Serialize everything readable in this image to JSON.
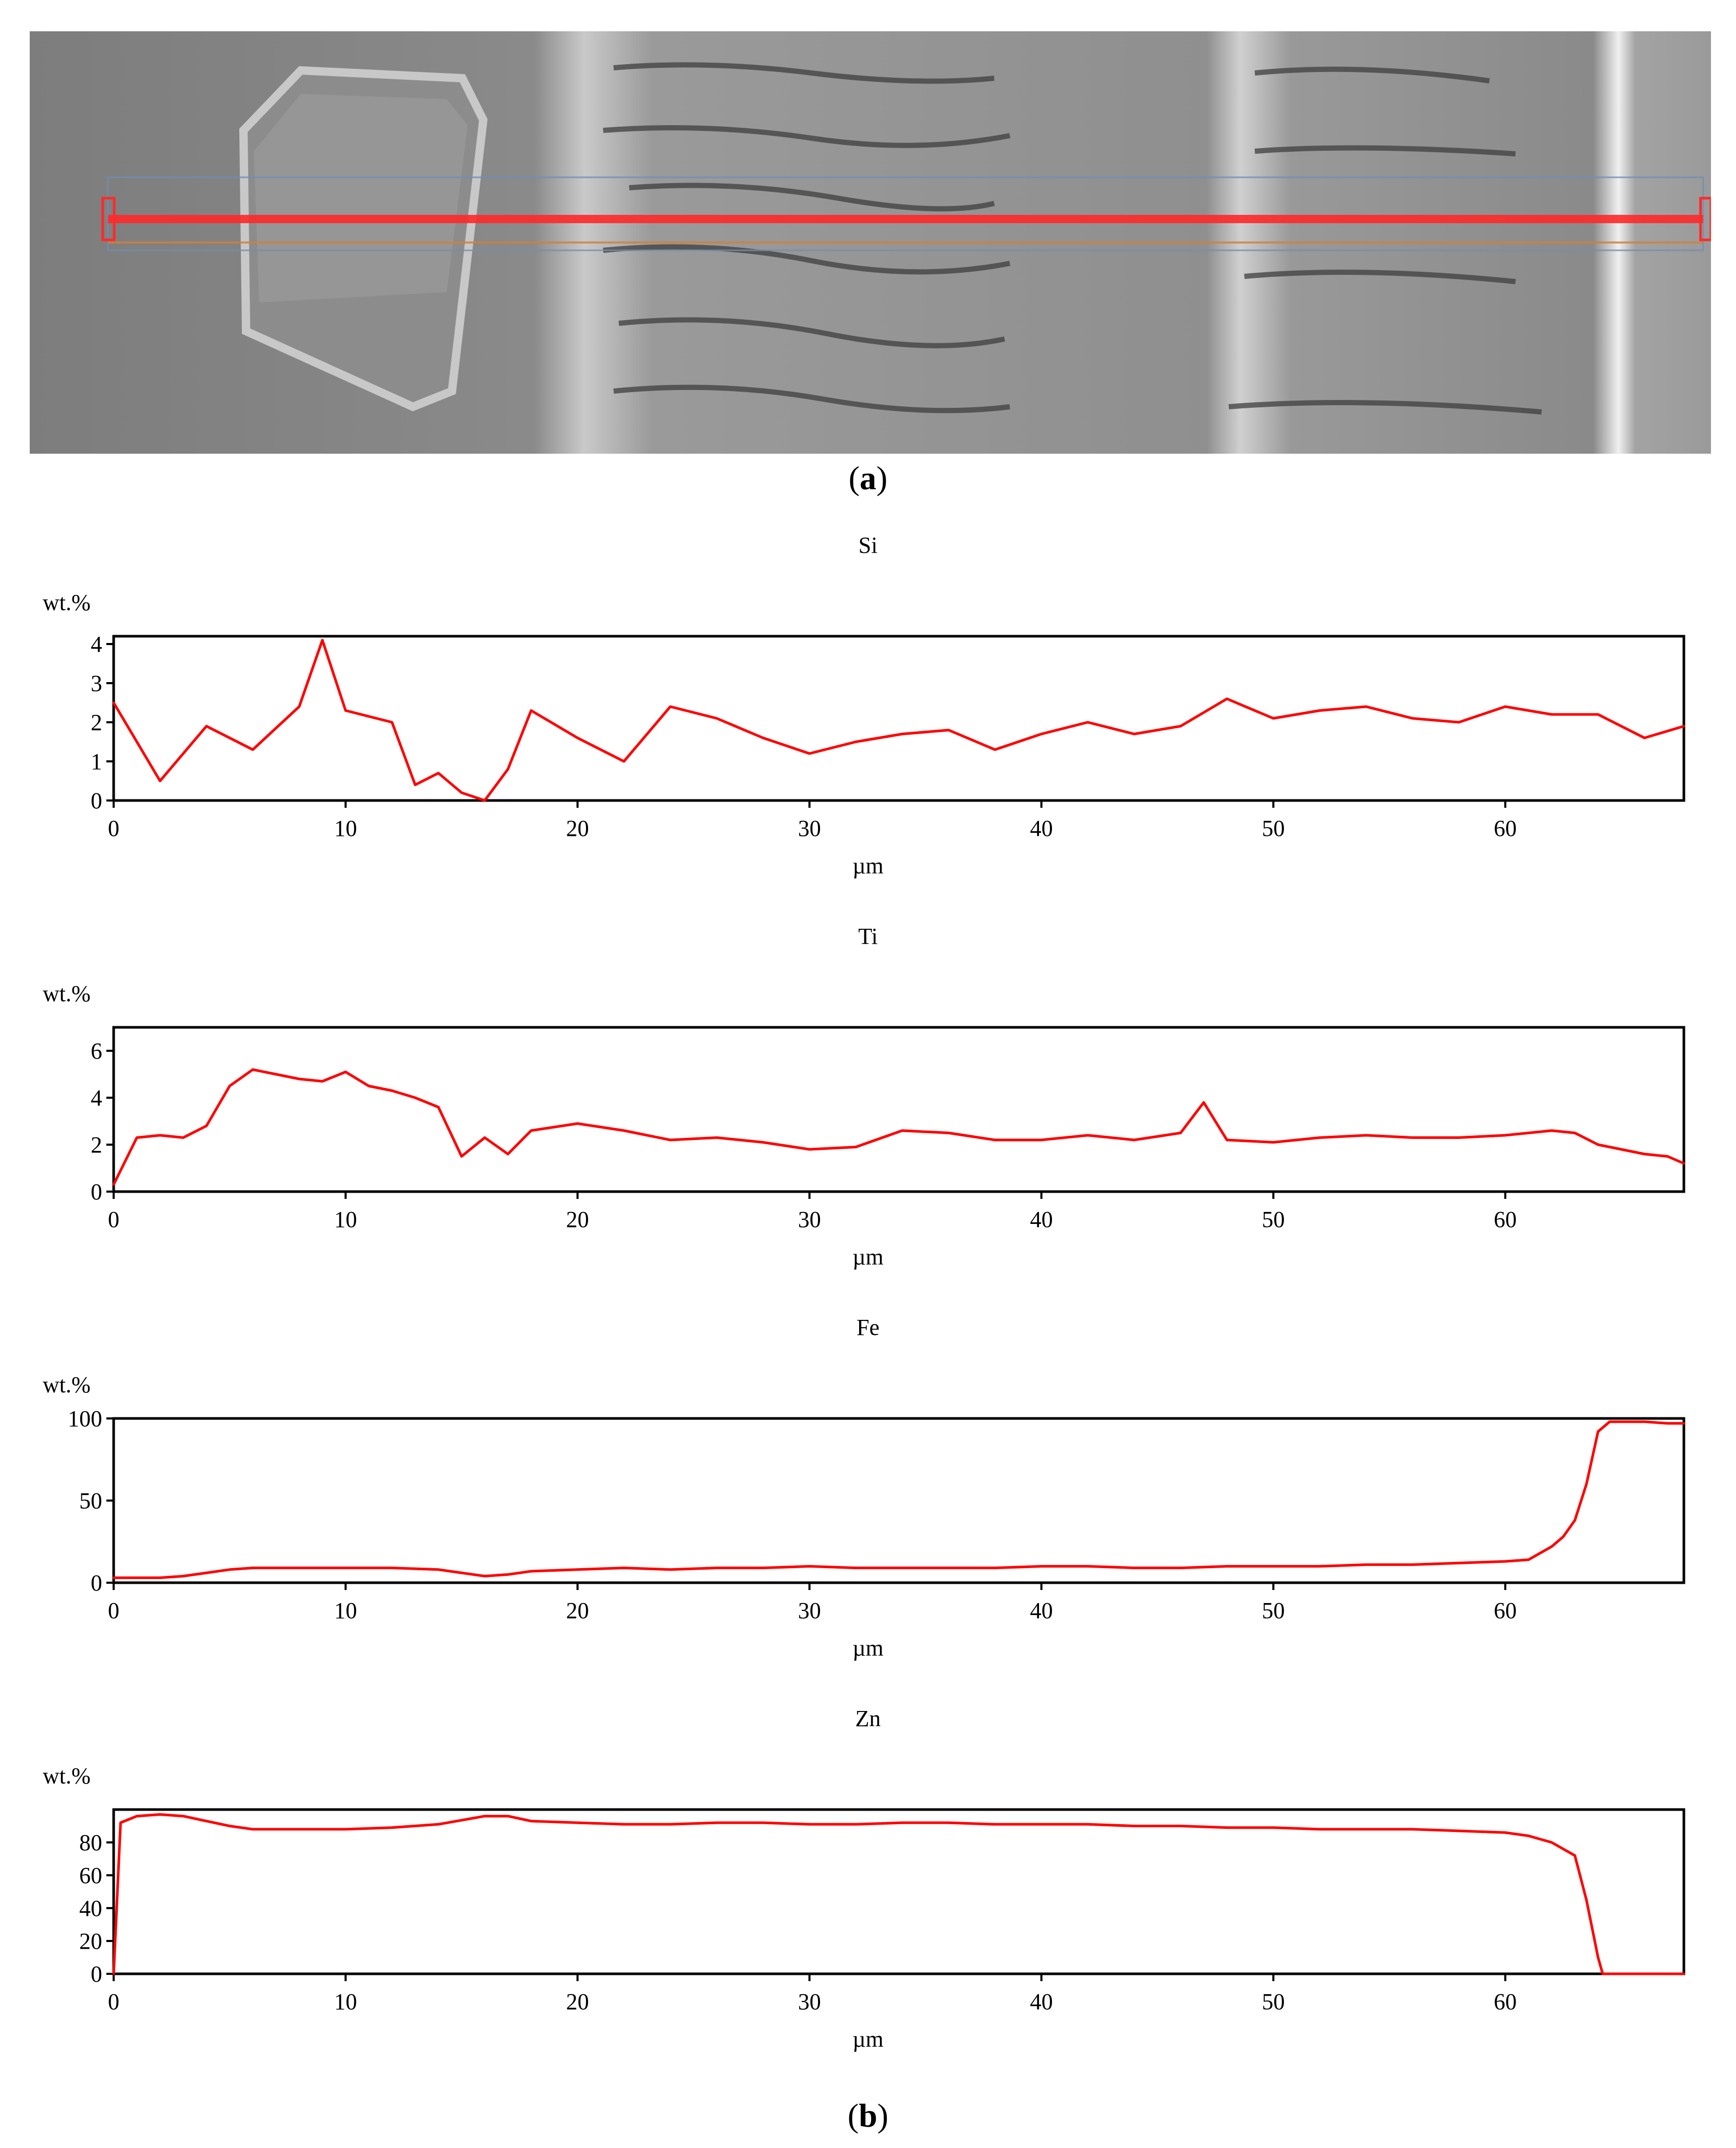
{
  "panel_a": {
    "caption_letter": "a",
    "colors": {
      "scanline": "#ff2a2a",
      "micrograph": "#8a8a8a"
    }
  },
  "panel_b": {
    "caption_letter": "b"
  },
  "chart_data": [
    {
      "type": "line",
      "title": "Si",
      "ylabel": "wt.%",
      "xlabel": "µm",
      "xlim": [
        0,
        67.7
      ],
      "ylim": [
        0,
        4.2
      ],
      "xticks": [
        0,
        10,
        20,
        30,
        40,
        50,
        60
      ],
      "yticks": [
        0,
        1,
        2,
        3,
        4
      ],
      "grid": false,
      "color": "#ff0000",
      "x": [
        0,
        2,
        4,
        6,
        8,
        9,
        10,
        12,
        13,
        14,
        15,
        16,
        17,
        18,
        20,
        22,
        24,
        26,
        28,
        30,
        32,
        34,
        36,
        38,
        40,
        42,
        44,
        46,
        48,
        50,
        52,
        54,
        56,
        58,
        60,
        62,
        64,
        66,
        67.7
      ],
      "y": [
        2.5,
        0.5,
        1.9,
        1.3,
        2.4,
        4.1,
        2.3,
        2.0,
        0.4,
        0.7,
        0.2,
        0.0,
        0.8,
        2.3,
        1.6,
        1.0,
        2.4,
        2.1,
        1.6,
        1.2,
        1.5,
        1.7,
        1.8,
        1.3,
        1.7,
        2.0,
        1.7,
        1.9,
        2.6,
        2.1,
        2.3,
        2.4,
        2.1,
        2.0,
        2.4,
        2.2,
        2.2,
        1.6,
        1.9
      ]
    },
    {
      "type": "line",
      "title": "Ti",
      "ylabel": "wt.%",
      "xlabel": "µm",
      "xlim": [
        0,
        67.7
      ],
      "ylim": [
        0,
        7
      ],
      "xticks": [
        0,
        10,
        20,
        30,
        40,
        50,
        60
      ],
      "yticks": [
        0,
        2,
        4,
        6
      ],
      "grid": false,
      "color": "#ff0000",
      "x": [
        0,
        1,
        2,
        3,
        4,
        5,
        6,
        7,
        8,
        9,
        10,
        11,
        12,
        13,
        14,
        15,
        16,
        17,
        18,
        20,
        22,
        24,
        26,
        28,
        30,
        32,
        34,
        36,
        38,
        40,
        42,
        44,
        46,
        47,
        48,
        50,
        52,
        54,
        56,
        58,
        60,
        62,
        63,
        64,
        65,
        66,
        67,
        67.7
      ],
      "y": [
        0.3,
        2.3,
        2.4,
        2.3,
        2.8,
        4.5,
        5.2,
        5.0,
        4.8,
        4.7,
        5.1,
        4.5,
        4.3,
        4.0,
        3.6,
        1.5,
        2.3,
        1.6,
        2.6,
        2.9,
        2.6,
        2.2,
        2.3,
        2.1,
        1.8,
        1.9,
        2.6,
        2.5,
        2.2,
        2.2,
        2.4,
        2.2,
        2.5,
        3.8,
        2.2,
        2.1,
        2.3,
        2.4,
        2.3,
        2.3,
        2.4,
        2.6,
        2.5,
        2.0,
        1.8,
        1.6,
        1.5,
        1.2
      ]
    },
    {
      "type": "line",
      "title": "Fe",
      "ylabel": "wt.%",
      "xlabel": "µm",
      "xlim": [
        0,
        67.7
      ],
      "ylim": [
        0,
        100
      ],
      "xticks": [
        0,
        10,
        20,
        30,
        40,
        50,
        60
      ],
      "yticks": [
        0,
        50,
        100
      ],
      "grid": false,
      "color": "#ff0000",
      "x": [
        0,
        2,
        3,
        4,
        5,
        6,
        8,
        10,
        12,
        14,
        15,
        16,
        17,
        18,
        20,
        22,
        24,
        26,
        28,
        30,
        32,
        34,
        36,
        38,
        40,
        42,
        44,
        46,
        48,
        50,
        52,
        54,
        56,
        58,
        60,
        61,
        62,
        62.5,
        63,
        63.5,
        64,
        64.5,
        65,
        66,
        67,
        67.7
      ],
      "y": [
        3,
        3,
        4,
        6,
        8,
        9,
        9,
        9,
        9,
        8,
        6,
        4,
        5,
        7,
        8,
        9,
        8,
        9,
        9,
        10,
        9,
        9,
        9,
        9,
        10,
        10,
        9,
        9,
        10,
        10,
        10,
        11,
        11,
        12,
        13,
        14,
        22,
        28,
        38,
        60,
        92,
        98,
        98,
        98,
        97,
        97
      ]
    },
    {
      "type": "line",
      "title": "Zn",
      "ylabel": "wt.%",
      "xlabel": "µm",
      "xlim": [
        0,
        67.7
      ],
      "ylim": [
        0,
        100
      ],
      "xticks": [
        0,
        10,
        20,
        30,
        40,
        50,
        60
      ],
      "yticks": [
        0,
        20,
        40,
        60,
        80
      ],
      "grid": false,
      "color": "#ff0000",
      "x": [
        0,
        0.3,
        1,
        2,
        3,
        4,
        5,
        6,
        8,
        10,
        12,
        14,
        16,
        17,
        18,
        20,
        22,
        24,
        26,
        28,
        30,
        32,
        34,
        36,
        38,
        40,
        42,
        44,
        46,
        48,
        50,
        52,
        54,
        56,
        58,
        60,
        61,
        62,
        63,
        63.5,
        64,
        64.2,
        65,
        66,
        67,
        67.7
      ],
      "y": [
        0,
        92,
        96,
        97,
        96,
        93,
        90,
        88,
        88,
        88,
        89,
        91,
        96,
        96,
        93,
        92,
        91,
        91,
        92,
        92,
        91,
        91,
        92,
        92,
        91,
        91,
        91,
        90,
        90,
        89,
        89,
        88,
        88,
        88,
        87,
        86,
        84,
        80,
        72,
        45,
        10,
        0,
        0,
        0,
        0,
        0
      ]
    }
  ]
}
